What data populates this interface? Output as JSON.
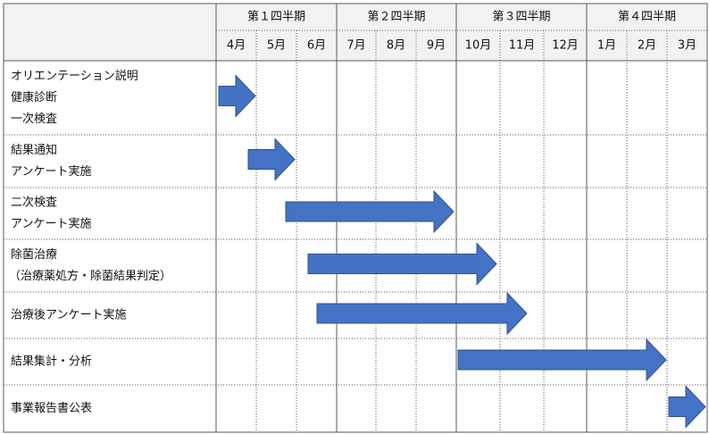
{
  "quarters": [
    "第１四半期",
    "第２四半期",
    "第３四半期",
    "第４四半期"
  ],
  "months": [
    "4月",
    "5月",
    "6月",
    "7月",
    "8月",
    "9月",
    "10月",
    "11月",
    "12月",
    "1月",
    "2月",
    "3月"
  ],
  "tasks": [
    {
      "lines": [
        "オリエンテーション説明",
        "健康診断",
        "一次検査"
      ],
      "start_month": "4月",
      "end_month": "4月"
    },
    {
      "lines": [
        "結果通知",
        "アンケート実施"
      ],
      "start_month": "5月",
      "end_month": "5月"
    },
    {
      "lines": [
        "二次検査",
        "アンケート実施"
      ],
      "start_month": "6月",
      "end_month": "9月"
    },
    {
      "lines": [
        "除菌治療",
        "（治療薬処方・除菌結果判定）"
      ],
      "start_month": "6月",
      "end_month": "10月"
    },
    {
      "lines": [
        "治療後アンケート実施"
      ],
      "start_month": "6月",
      "end_month": "11月"
    },
    {
      "lines": [
        "結果集計・分析"
      ],
      "start_month": "10月",
      "end_month": "2月"
    },
    {
      "lines": [
        "事業報告書公表"
      ],
      "start_month": "3月",
      "end_month": "3月"
    }
  ],
  "colors": {
    "arrow_fill": "#4472C4",
    "arrow_stroke": "#2F528F",
    "header_bg": "#F2F2F2",
    "grid": "#595959"
  }
}
